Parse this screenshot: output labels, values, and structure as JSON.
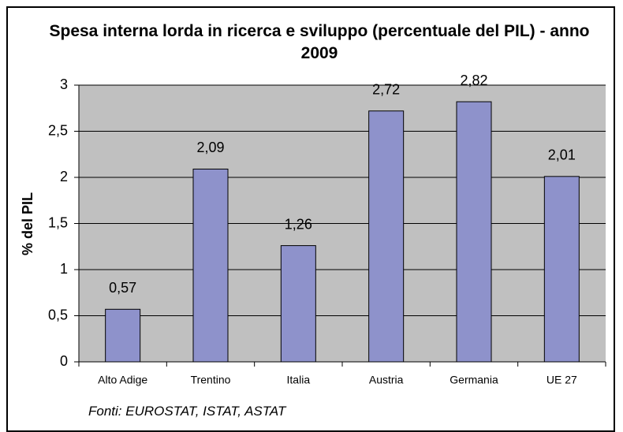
{
  "chart_data": {
    "type": "bar",
    "title": "Spesa interna lorda in ricerca e sviluppo (percentuale del PIL) - anno 2009",
    "y_label": "% del PIL",
    "annotation": "Fonti: EUROSTAT, ISTAT, ASTAT",
    "categories": [
      "Alto Adige",
      "Trentino",
      "Italia",
      "Austria",
      "Germania",
      "UE 27"
    ],
    "values": [
      0.57,
      2.09,
      1.26,
      2.72,
      2.82,
      2.01
    ],
    "value_labels": [
      "0,57",
      "2,09",
      "1,26",
      "2,72",
      "2,82",
      "2,01"
    ],
    "color": "#8e92cb",
    "ylim": [
      0,
      3
    ],
    "yticks": [
      0,
      {
        "value": 0.5,
        "label": "0,5"
      },
      1,
      {
        "value": 1.5,
        "label": "1,5"
      },
      2,
      {
        "value": 2.5,
        "label": "2,5"
      },
      3
    ],
    "grid": true
  }
}
